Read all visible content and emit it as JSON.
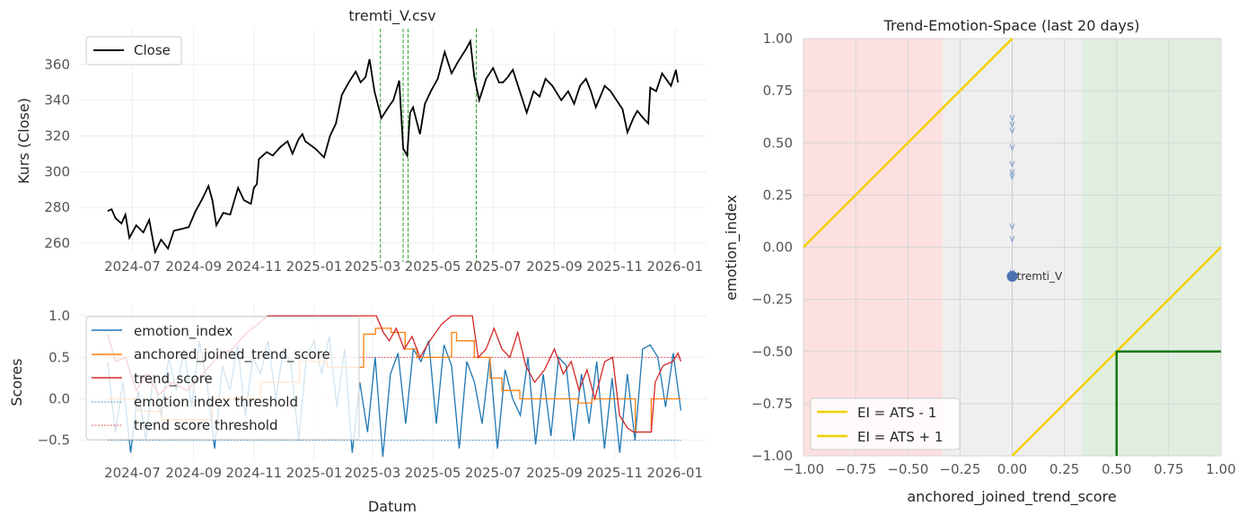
{
  "chart_data": [
    {
      "type": "line",
      "title": "tremti_V.csv",
      "xlabel": "",
      "ylabel": "Kurs (Close)",
      "xlim": [
        "2024-05-08",
        "2026-02-02"
      ],
      "ylim": [
        254.5,
        380
      ],
      "yticks": [
        260,
        280,
        300,
        320,
        340,
        360
      ],
      "xticks": [
        "2024-07",
        "2024-09",
        "2024-11",
        "2025-01",
        "2025-03",
        "2025-05",
        "2025-07",
        "2025-09",
        "2025-11",
        "2026-01"
      ],
      "grid": true,
      "legend": {
        "position": "top-left",
        "entries": [
          "Close"
        ]
      },
      "series": [
        {
          "name": "Close",
          "color": "#000000",
          "points": [
            [
              "2024-06-06",
              278
            ],
            [
              "2024-06-10",
              279
            ],
            [
              "2024-06-14",
              274
            ],
            [
              "2024-06-20",
              271
            ],
            [
              "2024-06-24",
              276
            ],
            [
              "2024-06-28",
              263
            ],
            [
              "2024-07-05",
              270
            ],
            [
              "2024-07-12",
              266
            ],
            [
              "2024-07-18",
              273
            ],
            [
              "2024-07-24",
              255
            ],
            [
              "2024-07-30",
              262
            ],
            [
              "2024-08-06",
              257
            ],
            [
              "2024-08-12",
              267
            ],
            [
              "2024-08-20",
              268
            ],
            [
              "2024-08-27",
              269
            ],
            [
              "2024-09-03",
              278
            ],
            [
              "2024-09-10",
              285
            ],
            [
              "2024-09-16",
              292
            ],
            [
              "2024-09-20",
              284
            ],
            [
              "2024-09-24",
              270
            ],
            [
              "2024-10-01",
              277
            ],
            [
              "2024-10-08",
              276
            ],
            [
              "2024-10-16",
              291
            ],
            [
              "2024-10-22",
              284
            ],
            [
              "2024-10-29",
              282
            ],
            [
              "2024-11-01",
              291
            ],
            [
              "2024-11-04",
              293
            ],
            [
              "2024-11-06",
              307
            ],
            [
              "2024-11-14",
              311
            ],
            [
              "2024-11-20",
              309
            ],
            [
              "2024-11-28",
              314
            ],
            [
              "2024-12-05",
              317
            ],
            [
              "2024-12-10",
              310
            ],
            [
              "2024-12-16",
              318
            ],
            [
              "2024-12-20",
              321
            ],
            [
              "2024-12-23",
              317
            ],
            [
              "2025-01-02",
              313
            ],
            [
              "2025-01-11",
              308
            ],
            [
              "2025-01-17",
              320
            ],
            [
              "2025-01-23",
              327
            ],
            [
              "2025-01-29",
              343
            ],
            [
              "2025-02-05",
              350
            ],
            [
              "2025-02-12",
              356
            ],
            [
              "2025-02-17",
              350
            ],
            [
              "2025-02-22",
              353
            ],
            [
              "2025-02-26",
              363
            ],
            [
              "2025-03-03",
              345
            ],
            [
              "2025-03-10",
              330
            ],
            [
              "2025-03-17",
              336
            ],
            [
              "2025-03-22",
              340
            ],
            [
              "2025-03-28",
              351
            ],
            [
              "2025-04-01",
              313
            ],
            [
              "2025-04-05",
              309
            ],
            [
              "2025-04-08",
              333
            ],
            [
              "2025-04-11",
              336
            ],
            [
              "2025-04-18",
              321
            ],
            [
              "2025-04-23",
              338
            ],
            [
              "2025-04-29",
              345
            ],
            [
              "2025-05-06",
              352
            ],
            [
              "2025-05-13",
              367
            ],
            [
              "2025-05-20",
              355
            ],
            [
              "2025-05-27",
              362
            ],
            [
              "2025-06-03",
              368
            ],
            [
              "2025-06-08",
              373
            ],
            [
              "2025-06-12",
              353
            ],
            [
              "2025-06-17",
              340
            ],
            [
              "2025-06-24",
              352
            ],
            [
              "2025-07-01",
              358
            ],
            [
              "2025-07-07",
              350
            ],
            [
              "2025-07-11",
              350
            ],
            [
              "2025-07-16",
              353
            ],
            [
              "2025-07-21",
              357
            ],
            [
              "2025-07-28",
              345
            ],
            [
              "2025-08-04",
              333
            ],
            [
              "2025-08-11",
              345
            ],
            [
              "2025-08-17",
              342
            ],
            [
              "2025-08-23",
              352
            ],
            [
              "2025-08-30",
              348
            ],
            [
              "2025-09-08",
              340
            ],
            [
              "2025-09-15",
              345
            ],
            [
              "2025-09-21",
              338
            ],
            [
              "2025-09-27",
              348
            ],
            [
              "2025-10-03",
              352
            ],
            [
              "2025-10-08",
              345
            ],
            [
              "2025-10-13",
              336
            ],
            [
              "2025-10-22",
              348
            ],
            [
              "2025-10-28",
              345
            ],
            [
              "2025-11-03",
              340
            ],
            [
              "2025-11-09",
              335
            ],
            [
              "2025-11-14",
              322
            ],
            [
              "2025-11-20",
              330
            ],
            [
              "2025-11-24",
              334
            ],
            [
              "2025-11-30",
              330
            ],
            [
              "2025-12-05",
              327
            ],
            [
              "2025-12-07",
              347
            ],
            [
              "2025-12-13",
              345
            ],
            [
              "2025-12-19",
              355
            ],
            [
              "2025-12-28",
              348
            ],
            [
              "2026-01-02",
              357
            ],
            [
              "2026-01-04",
              350
            ]
          ]
        }
      ],
      "vlines": {
        "color": "#2ca02c",
        "dates": [
          "2025-03-09",
          "2025-04-01",
          "2025-04-06",
          "2025-06-14"
        ]
      }
    },
    {
      "type": "line",
      "title": "",
      "xlabel": "Datum",
      "ylabel": "Scores",
      "xlim": [
        "2024-05-08",
        "2026-02-02"
      ],
      "ylim": [
        -0.73,
        1.13
      ],
      "yticks": [
        -0.5,
        0.0,
        0.5,
        1.0
      ],
      "xticks": [
        "2024-07",
        "2024-09",
        "2024-11",
        "2025-01",
        "2025-03",
        "2025-05",
        "2025-07",
        "2025-09",
        "2025-11",
        "2026-01"
      ],
      "grid": true,
      "legend": {
        "position": "top-left",
        "entries": [
          "emotion_index",
          "anchored_joined_trend_score",
          "trend_score",
          "emotion index threshold",
          "trend score threshold"
        ]
      },
      "series": [
        {
          "name": "emotion_index",
          "color": "#1f77b4",
          "start": "2024-06-06",
          "end": "2026-01-07",
          "values": [
            0.45,
            -0.4,
            0.2,
            -0.65,
            0.1,
            -0.5,
            0.3,
            -0.2,
            0.5,
            0.1,
            0.6,
            -0.1,
            0.7,
            0.2,
            -0.6,
            0.4,
            0.1,
            0.65,
            -0.2,
            0.5,
            0.3,
            0.7,
            0.0,
            0.6,
            0.4,
            -0.5,
            0.5,
            0.7,
            0.3,
            0.75,
            -0.1,
            0.6,
            -0.65,
            0.2,
            -0.4,
            0.5,
            -0.7,
            0.3,
            0.55,
            -0.3,
            0.6,
            0.45,
            0.7,
            -0.3,
            0.65,
            0.4,
            -0.6,
            0.45,
            0.2,
            -0.3,
            0.5,
            -0.6,
            0.35,
            0.0,
            -0.2,
            0.5,
            -0.55,
            0.3,
            -0.45,
            0.5,
            0.4,
            -0.5,
            0.3,
            -0.3,
            0.45,
            -0.6,
            0.25,
            -0.65,
            0.3,
            -0.5,
            0.6,
            0.65,
            0.5,
            -0.1,
            0.55,
            -0.14
          ]
        },
        {
          "name": "anchored_joined_trend_score",
          "color": "#ff7f0e",
          "step": true,
          "points": [
            [
              "2024-06-06",
              0.0
            ],
            [
              "2024-07-07",
              -0.15
            ],
            [
              "2024-07-31",
              -0.25
            ],
            [
              "2024-09-20",
              0.0
            ],
            [
              "2024-11-08",
              0.2
            ],
            [
              "2024-12-17",
              0.45
            ],
            [
              "2025-01-14",
              0.38
            ],
            [
              "2025-02-20",
              0.78
            ],
            [
              "2025-03-04",
              0.85
            ],
            [
              "2025-03-20",
              0.8
            ],
            [
              "2025-04-03",
              0.6
            ],
            [
              "2025-04-15",
              0.5
            ],
            [
              "2025-05-20",
              0.8
            ],
            [
              "2025-05-25",
              0.7
            ],
            [
              "2025-06-12",
              0.5
            ],
            [
              "2025-06-28",
              0.25
            ],
            [
              "2025-07-10",
              0.1
            ],
            [
              "2025-07-28",
              0.0
            ],
            [
              "2025-09-25",
              -0.05
            ],
            [
              "2025-10-09",
              0.0
            ],
            [
              "2025-11-22",
              -0.4
            ],
            [
              "2025-12-08",
              0.0
            ],
            [
              "2026-01-07",
              0.0
            ]
          ]
        },
        {
          "name": "trend_score",
          "color": "#d62728",
          "points": [
            [
              "2024-06-06",
              0.78
            ],
            [
              "2024-06-14",
              0.45
            ],
            [
              "2024-06-24",
              0.5
            ],
            [
              "2024-07-05",
              0.1
            ],
            [
              "2024-07-15",
              0.3
            ],
            [
              "2024-07-28",
              0.05
            ],
            [
              "2024-08-10",
              0.2
            ],
            [
              "2024-08-25",
              0.1
            ],
            [
              "2024-09-10",
              0.3
            ],
            [
              "2024-09-25",
              0.5
            ],
            [
              "2024-10-10",
              0.6
            ],
            [
              "2024-10-25",
              0.8
            ],
            [
              "2024-11-05",
              0.9
            ],
            [
              "2024-11-15",
              1.0
            ],
            [
              "2025-03-05",
              1.0
            ],
            [
              "2025-03-12",
              0.8
            ],
            [
              "2025-03-18",
              0.7
            ],
            [
              "2025-03-25",
              0.85
            ],
            [
              "2025-04-02",
              0.6
            ],
            [
              "2025-04-10",
              0.75
            ],
            [
              "2025-04-18",
              0.5
            ],
            [
              "2025-04-28",
              0.7
            ],
            [
              "2025-05-10",
              0.9
            ],
            [
              "2025-05-20",
              1.0
            ],
            [
              "2025-06-10",
              1.0
            ],
            [
              "2025-06-16",
              0.5
            ],
            [
              "2025-06-24",
              0.6
            ],
            [
              "2025-07-02",
              0.85
            ],
            [
              "2025-07-10",
              0.6
            ],
            [
              "2025-07-18",
              0.5
            ],
            [
              "2025-07-26",
              0.8
            ],
            [
              "2025-08-03",
              0.4
            ],
            [
              "2025-08-12",
              0.2
            ],
            [
              "2025-08-22",
              0.35
            ],
            [
              "2025-09-01",
              0.6
            ],
            [
              "2025-09-10",
              0.3
            ],
            [
              "2025-09-18",
              0.45
            ],
            [
              "2025-09-26",
              0.1
            ],
            [
              "2025-10-04",
              0.35
            ],
            [
              "2025-10-12",
              0.0
            ],
            [
              "2025-10-22",
              0.45
            ],
            [
              "2025-10-30",
              0.5
            ],
            [
              "2025-11-06",
              -0.2
            ],
            [
              "2025-11-14",
              -0.35
            ],
            [
              "2025-11-20",
              -0.4
            ],
            [
              "2025-12-08",
              -0.4
            ],
            [
              "2025-12-12",
              0.2
            ],
            [
              "2025-12-20",
              0.4
            ],
            [
              "2025-12-30",
              0.45
            ],
            [
              "2026-01-04",
              0.55
            ],
            [
              "2026-01-07",
              0.45
            ]
          ]
        }
      ],
      "hlines": [
        {
          "name": "emotion index threshold",
          "value": -0.5,
          "color": "#1f77b4"
        },
        {
          "name": "trend score threshold",
          "value": 0.5,
          "color": "#d62728"
        }
      ]
    },
    {
      "type": "scatter",
      "title": "Trend-Emotion-Space (last 20 days)",
      "xlabel": "anchored_joined_trend_score",
      "ylabel": "emotion_index",
      "xlim": [
        -1,
        1
      ],
      "ylim": [
        -1,
        1
      ],
      "xticks": [
        -1.0,
        -0.75,
        -0.5,
        -0.25,
        0.0,
        0.25,
        0.5,
        0.75,
        1.0
      ],
      "yticks": [
        -1.0,
        -0.75,
        -0.5,
        -0.25,
        0.0,
        0.25,
        0.5,
        0.75,
        1.0
      ],
      "tick_labels": [
        "−1.00",
        "−0.75",
        "−0.50",
        "−0.25",
        "0.00",
        "0.25",
        "0.50",
        "0.75",
        "1.00"
      ],
      "grid": true,
      "bands": [
        {
          "from": -1,
          "to": -0.333,
          "color": "#fde0e0"
        },
        {
          "from": -0.333,
          "to": 0.333,
          "color": "#efefef"
        },
        {
          "from": 0.333,
          "to": 1,
          "color": "#e0eee0"
        }
      ],
      "lines": [
        {
          "name": "EI = ATS - 1",
          "offset": -1,
          "color": "#f5d000"
        },
        {
          "name": "EI = ATS + 1",
          "offset": 1,
          "color": "#f5d000"
        }
      ],
      "zone": {
        "x": 0.5,
        "y": -0.5,
        "color": "#117711"
      },
      "trail": {
        "x": 0.0,
        "y": [
          0.62,
          0.59,
          0.56,
          0.48,
          0.4,
          0.36,
          0.34,
          0.1,
          0.04,
          -0.12
        ],
        "color": "#7799cc"
      },
      "point": {
        "label": "tremti_V",
        "x": 0.0,
        "y": -0.14,
        "color": "#4c72b0"
      },
      "legend": {
        "position": "lower-left",
        "entries": [
          "EI = ATS - 1",
          "EI = ATS + 1"
        ]
      }
    }
  ]
}
